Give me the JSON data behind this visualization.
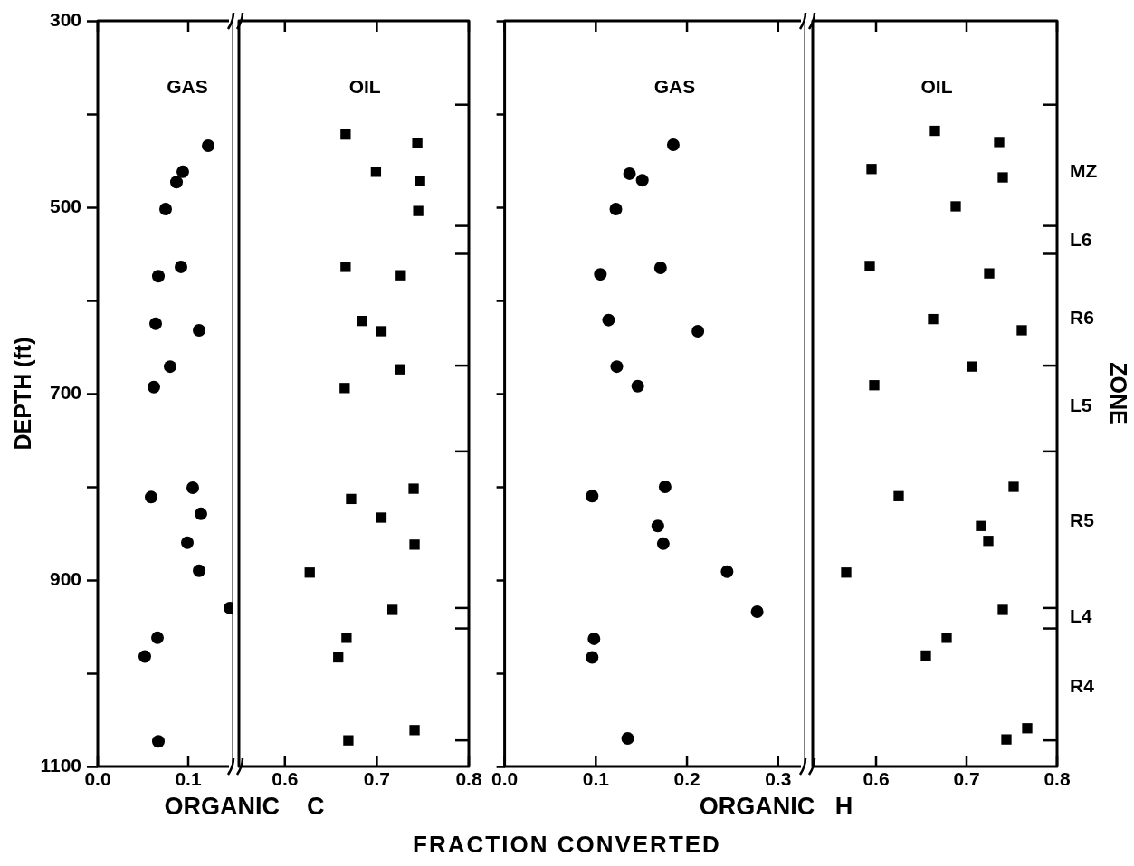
{
  "chart_data": [
    {
      "type": "scatter",
      "xlabel": "ORGANIC    C",
      "ylabel": "DEPTH (ft)",
      "annotations": [
        "FRACTION CONVERTED"
      ],
      "xlim": [
        0,
        0.15
      ],
      "xticks": [
        {
          "value": 0,
          "label": "0.0"
        },
        0.1
      ],
      "ylim": [
        1100,
        300
      ],
      "yticks": [
        300,
        {
          "value": 400,
          "label": null
        },
        500,
        {
          "value": 600,
          "label": null
        },
        700,
        {
          "value": 800,
          "label": null
        },
        900,
        {
          "value": 1000,
          "label": null
        },
        1100
      ],
      "grid": false,
      "legend": false,
      "series": [
        {
          "name": "GAS",
          "color": "#000000",
          "marker": "circle",
          "x": [
            0.122,
            0.094,
            0.087,
            0.075,
            0.092,
            0.067,
            0.064,
            0.112,
            0.08,
            0.062,
            0.059,
            0.105,
            0.114,
            0.099,
            0.112,
            0.146,
            0.066,
            0.052,
            0.067
          ],
          "values": [
            434,
            462,
            473,
            502,
            564,
            574,
            625,
            632,
            671,
            693,
            811,
            801,
            829,
            860,
            890,
            930,
            962,
            982,
            1073
          ]
        }
      ]
    },
    {
      "type": "scatter",
      "tick_labels": "x",
      "xlim": [
        0.55,
        0.8
      ],
      "xticks": [
        0.6,
        0.7,
        0.8
      ],
      "ylim": [
        1100,
        300
      ],
      "grid": false,
      "legend": false,
      "series": [
        {
          "name": "OIL",
          "color": "#000000",
          "marker": "square",
          "x": [
            0.666,
            0.744,
            0.699,
            0.747,
            0.745,
            0.666,
            0.726,
            0.684,
            0.705,
            0.725,
            0.665,
            0.74,
            0.672,
            0.705,
            0.741,
            0.627,
            0.717,
            0.667,
            0.658,
            0.741,
            0.669
          ],
          "values": [
            422,
            431,
            462,
            472,
            504,
            564,
            573,
            622,
            633,
            674,
            694,
            802,
            813,
            833,
            862,
            892,
            932,
            962,
            983,
            1061,
            1072
          ]
        }
      ]
    },
    {
      "type": "scatter",
      "xlabel": "ORGANIC   H",
      "tick_labels": "x",
      "xlim": [
        0,
        0.33
      ],
      "xticks": [
        {
          "value": 0,
          "label": "0.0"
        },
        0.1,
        0.2,
        0.3
      ],
      "ylim": [
        1100,
        300
      ],
      "yticks": [
        {
          "value": 300,
          "label": null
        },
        {
          "value": 400,
          "label": null
        },
        {
          "value": 500,
          "label": null
        },
        {
          "value": 600,
          "label": null
        },
        {
          "value": 700,
          "label": null
        },
        {
          "value": 800,
          "label": null
        },
        {
          "value": 900,
          "label": null
        },
        {
          "value": 1000,
          "label": null
        },
        {
          "value": 1100,
          "label": null
        }
      ],
      "grid": false,
      "legend": false,
      "series": [
        {
          "name": "GAS",
          "color": "#000000",
          "marker": "circle",
          "x": [
            0.185,
            0.137,
            0.151,
            0.122,
            0.171,
            0.105,
            0.114,
            0.212,
            0.123,
            0.146,
            0.096,
            0.176,
            0.168,
            0.174,
            0.244,
            0.277,
            0.098,
            0.096,
            0.135
          ],
          "values": [
            433,
            464,
            471,
            502,
            565,
            572,
            621,
            633,
            671,
            692,
            810,
            800,
            842,
            861,
            891,
            934,
            963,
            983,
            1070
          ]
        }
      ]
    },
    {
      "type": "scatter",
      "tick_labels": "x",
      "y2label": "ZONE",
      "xlim": [
        0.53,
        0.8
      ],
      "xticks": [
        0.6,
        0.7,
        0.8
      ],
      "ylim": [
        1100,
        300
      ],
      "annotations": [
        "MZ",
        "L6",
        "R6",
        "L5",
        "R5",
        "L4",
        "R4"
      ],
      "grid": false,
      "legend": false,
      "series": [
        {
          "name": "OIL",
          "color": "#000000",
          "marker": "square",
          "x": [
            0.665,
            0.736,
            0.595,
            0.74,
            0.688,
            0.593,
            0.725,
            0.663,
            0.761,
            0.706,
            0.598,
            0.625,
            0.752,
            0.716,
            0.724,
            0.567,
            0.74,
            0.678,
            0.655,
            0.744,
            0.767
          ],
          "values": [
            418,
            430,
            459,
            468,
            499,
            563,
            571,
            620,
            632,
            671,
            691,
            810,
            800,
            842,
            858,
            892,
            932,
            962,
            981,
            1071,
            1059
          ]
        }
      ]
    }
  ]
}
